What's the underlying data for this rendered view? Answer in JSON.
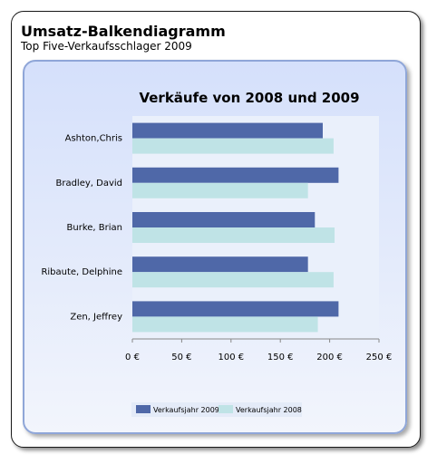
{
  "header": {
    "title": "Umsatz-Balkendiagramm",
    "subtitle": "Top Five-Verkaufsschlager 2009"
  },
  "chart_data": {
    "type": "bar",
    "orientation": "horizontal",
    "title": "Verkäufe von 2008 und 2009",
    "categories": [
      "Ashton,Chris",
      "Bradley, David",
      "Burke, Brian",
      "Ribaute, Delphine",
      "Zen, Jeffrey"
    ],
    "series": [
      {
        "name": "Verkaufsjahr 2009",
        "color": "#4f68a8",
        "values": [
          193,
          209,
          185,
          178,
          209
        ]
      },
      {
        "name": "Verkaufsjahr 2008",
        "color": "#bfe3e6",
        "values": [
          204,
          178,
          205,
          204,
          188
        ]
      }
    ],
    "xlim": [
      0,
      250
    ],
    "ticks": [
      0,
      50,
      100,
      150,
      200,
      250
    ],
    "tick_labels": [
      "0 €",
      "50 €",
      "100 €",
      "150 €",
      "200 €",
      "250 €"
    ],
    "grid": false,
    "legend_position": "bottom"
  }
}
